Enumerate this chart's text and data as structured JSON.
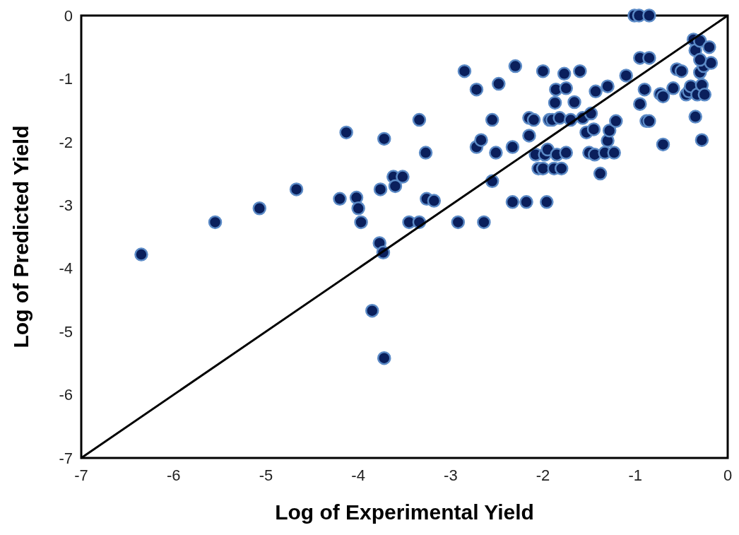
{
  "chart_data": {
    "type": "scatter",
    "xlabel": "Log of Experimental Yield",
    "ylabel": "Log of Predicted Yield",
    "xlim": [
      -7,
      0
    ],
    "ylim": [
      -7,
      0
    ],
    "xticks": [
      -7,
      -6,
      -5,
      -4,
      -3,
      -2,
      -1,
      0
    ],
    "yticks": [
      -7,
      -6,
      -5,
      -4,
      -3,
      -2,
      -1,
      0
    ],
    "grid": false,
    "series": [
      {
        "marker": "circle",
        "color": "#0a1f5c",
        "x": [
          -6.35,
          -5.55,
          -5.07,
          -4.67,
          -4.2,
          -4.13,
          -4.02,
          -4.0,
          -3.97,
          -3.76,
          -3.72,
          -3.62,
          -3.6,
          -3.52,
          -3.45,
          -3.34,
          -3.34,
          -3.27,
          -3.26,
          -3.18,
          -3.77,
          -3.73,
          -3.85,
          -3.72,
          -2.92,
          -2.85,
          -2.72,
          -2.72,
          -2.67,
          -2.64,
          -2.55,
          -2.55,
          -2.51,
          -2.48,
          -2.33,
          -2.33,
          -2.3,
          -2.18,
          -2.15,
          -2.15,
          -2.1,
          -2.08,
          -2.05,
          -2.0,
          -2.0,
          -1.98,
          -1.96,
          -1.95,
          -1.93,
          -1.9,
          -1.88,
          -1.87,
          -1.86,
          -1.85,
          -1.82,
          -1.8,
          -1.77,
          -1.75,
          -1.75,
          -1.7,
          -1.66,
          -1.6,
          -1.57,
          -1.53,
          -1.5,
          -1.48,
          -1.45,
          -1.44,
          -1.43,
          -1.38,
          -1.33,
          -1.3,
          -1.3,
          -1.28,
          -1.23,
          -1.21,
          -1.1,
          -1.01,
          -0.96,
          -0.85,
          -0.95,
          -0.85,
          -0.95,
          -0.9,
          -0.88,
          -0.85,
          -0.73,
          -0.7,
          -0.7,
          -0.59,
          -0.55,
          -0.5,
          -0.45,
          -0.42,
          -0.4,
          -0.37,
          -0.35,
          -0.35,
          -0.33,
          -0.3,
          -0.3,
          -0.28,
          -0.28,
          -0.26,
          -0.25,
          -0.2,
          -0.18,
          -0.3
        ],
        "values": [
          -3.78,
          -3.27,
          -3.05,
          -2.75,
          -2.9,
          -1.85,
          -2.88,
          -3.05,
          -3.27,
          -2.75,
          -1.95,
          -2.55,
          -2.7,
          -2.55,
          -3.27,
          -3.27,
          -1.65,
          -2.17,
          -2.9,
          -2.93,
          -3.6,
          -3.75,
          -4.67,
          -5.42,
          -3.27,
          -0.88,
          -1.17,
          -2.08,
          -1.97,
          -3.27,
          -2.62,
          -1.65,
          -2.17,
          -1.08,
          -2.95,
          -2.08,
          -0.8,
          -2.95,
          -1.62,
          -1.9,
          -1.65,
          -2.2,
          -2.42,
          -2.42,
          -0.88,
          -2.2,
          -2.95,
          -2.12,
          -1.65,
          -1.65,
          -2.42,
          -1.38,
          -1.17,
          -2.2,
          -1.62,
          -2.42,
          -0.92,
          -2.17,
          -1.15,
          -1.65,
          -1.37,
          -0.88,
          -1.62,
          -1.85,
          -2.17,
          -1.55,
          -1.8,
          -2.2,
          -1.2,
          -2.5,
          -2.17,
          -1.12,
          -1.98,
          -1.82,
          -2.17,
          -1.67,
          -0.95,
          0,
          0,
          0,
          -0.67,
          -0.67,
          -1.4,
          -1.17,
          -1.67,
          -1.67,
          -1.24,
          -1.28,
          -2.04,
          -1.15,
          -0.85,
          -0.88,
          -1.25,
          -1.2,
          -1.12,
          -0.38,
          -0.55,
          -1.6,
          -1.25,
          -0.4,
          -0.9,
          -1.1,
          -1.97,
          -0.8,
          -1.25,
          -0.5,
          -0.75,
          -0.7
        ]
      },
      {
        "type": "line",
        "color": "#000000",
        "x": [
          -7,
          0
        ],
        "values": [
          -7,
          0
        ]
      }
    ]
  }
}
